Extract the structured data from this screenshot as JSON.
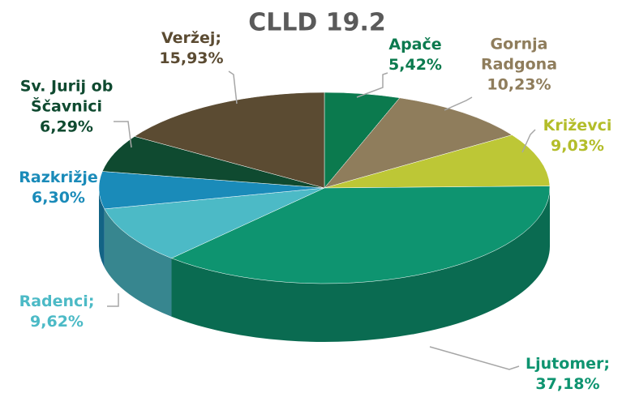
{
  "chart_data": {
    "type": "pie",
    "title": "CLLD 19.2",
    "categories": [
      "Apače",
      "Gornja Radgona",
      "Križevci",
      "Ljutomer;",
      "Radenci;",
      "Razkrižje",
      "Sv. Jurij ob Ščavnici",
      "Veržej;"
    ],
    "values": [
      5.42,
      10.23,
      9.03,
      37.18,
      9.62,
      6.3,
      6.29,
      15.93
    ],
    "value_labels": [
      "5,42%",
      "10,23%",
      "9,03%",
      "37,18%",
      "9,62%",
      "6,30%",
      "6,29%",
      "15,93%"
    ],
    "colors": [
      "#0b7a4e",
      "#8f7d5c",
      "#bdc736",
      "#0e9470",
      "#4cbac6",
      "#1a8bb9",
      "#0f4a30",
      "#5b4b32"
    ]
  }
}
